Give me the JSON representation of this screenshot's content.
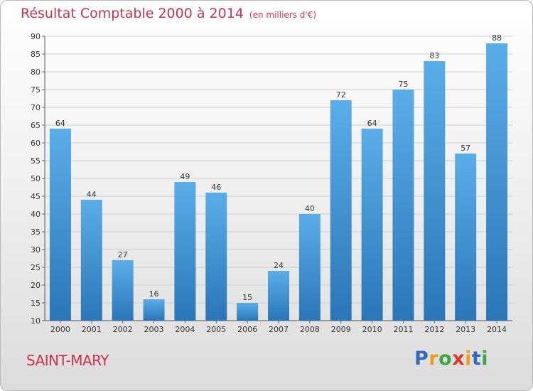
{
  "header": {
    "title": "Résultat Comptable 2000 à 2014",
    "subtitle": "(en milliers d'€)"
  },
  "footer": {
    "commune": "SAINT-MARY",
    "logo_letters": [
      "P",
      "r",
      "o",
      "x",
      "i",
      "t",
      "i"
    ],
    "logo_colors": [
      "#2f6bc2",
      "#e8a21a",
      "#3aa844",
      "#d93a2b",
      "#e8a21a",
      "#2f6bc2",
      "#3aa844"
    ]
  },
  "chart_data": {
    "type": "bar",
    "title": "Résultat Comptable 2000 à 2014",
    "xlabel": "",
    "ylabel": "",
    "categories": [
      "2000",
      "2001",
      "2002",
      "2003",
      "2004",
      "2005",
      "2006",
      "2007",
      "2008",
      "2009",
      "2010",
      "2011",
      "2012",
      "2013",
      "2014"
    ],
    "values": [
      64,
      44,
      27,
      16,
      49,
      46,
      15,
      24,
      40,
      72,
      64,
      75,
      83,
      57,
      88
    ],
    "ylim": [
      10,
      90
    ],
    "yticks": [
      10,
      15,
      20,
      25,
      30,
      35,
      40,
      45,
      50,
      55,
      60,
      65,
      70,
      75,
      80,
      85,
      90
    ],
    "grid": true,
    "bar_color_top": "#5aaee8",
    "bar_color_bottom": "#2a76b8",
    "grid_color": "#cfcfcf"
  }
}
